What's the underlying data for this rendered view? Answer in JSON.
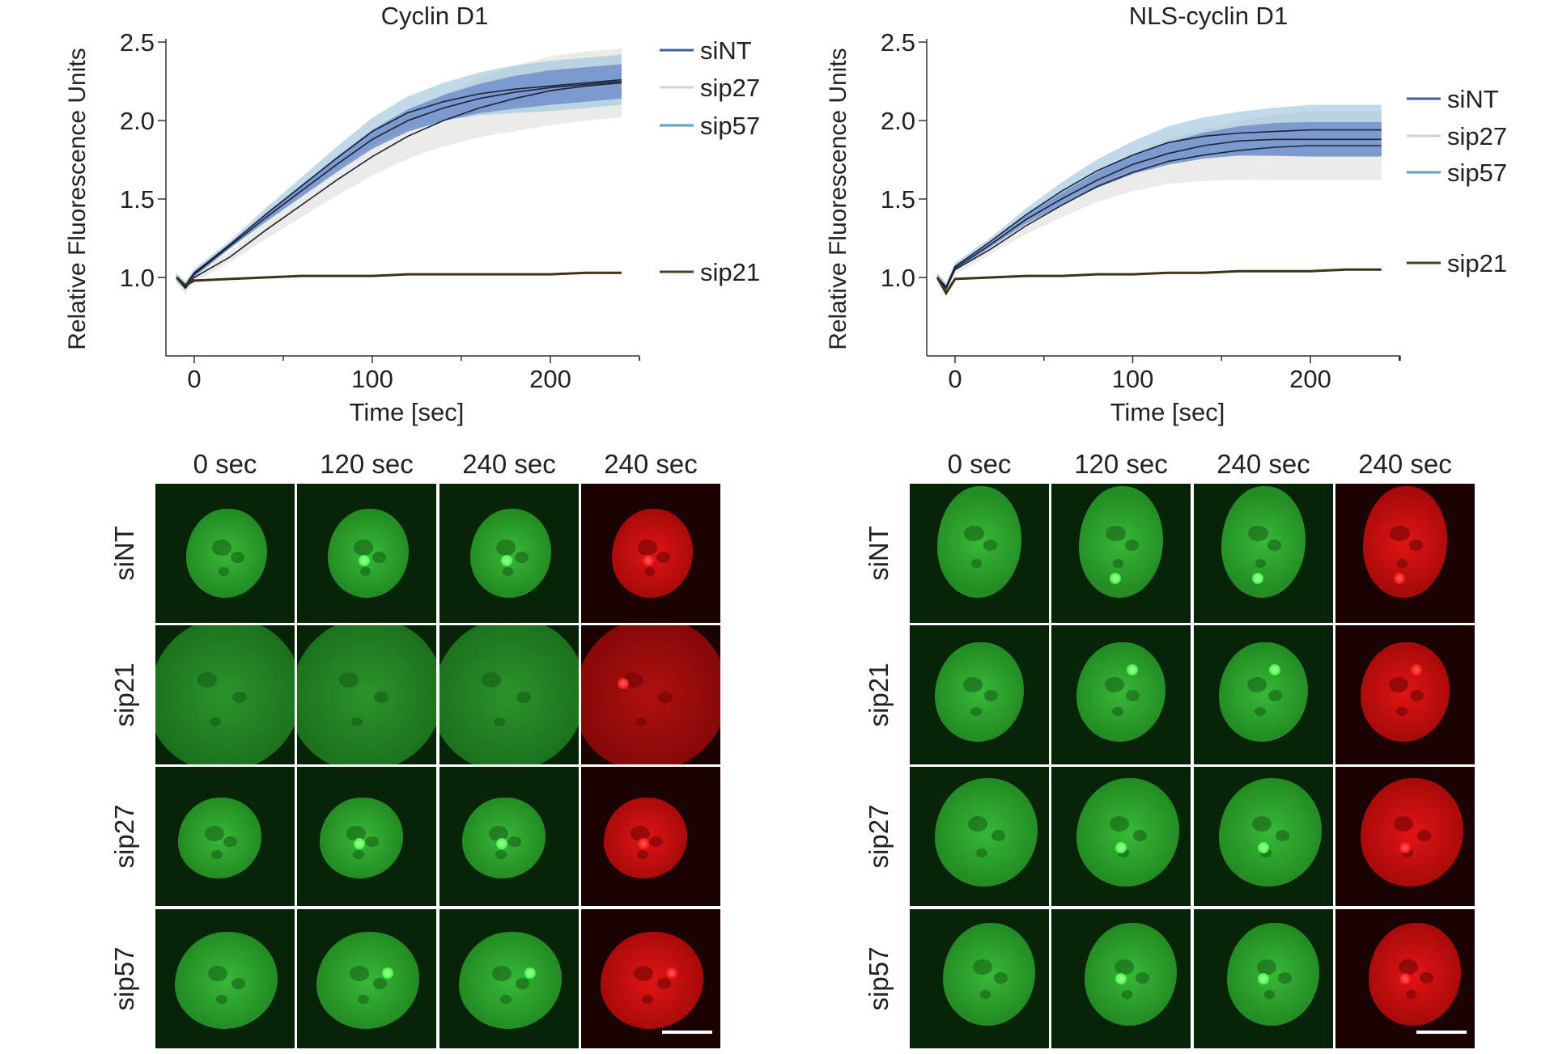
{
  "charts": [
    {
      "title": "Cyclin D1",
      "xlabel": "Time [sec]",
      "ylabel": "Relative Fluorescence Units",
      "xticks": [
        "0",
        "100",
        "200"
      ],
      "yticks": [
        "1.0",
        "1.5",
        "2.0",
        "2.5"
      ]
    },
    {
      "title": "NLS-cyclin D1",
      "xlabel": "Time [sec]",
      "ylabel": "Relative Fluorescence Units",
      "xticks": [
        "0",
        "100",
        "200"
      ],
      "yticks": [
        "1.0",
        "1.5",
        "2.0",
        "2.5"
      ]
    }
  ],
  "chart_data": [
    {
      "type": "line",
      "title": "Cyclin D1",
      "xlabel": "Time [sec]",
      "ylabel": "Relative Fluorescence Units",
      "xlim": [
        -15,
        250
      ],
      "ylim": [
        0.5,
        2.5
      ],
      "grid": false,
      "legend_placement": "right",
      "x": [
        -10,
        -5,
        0,
        20,
        40,
        60,
        80,
        100,
        120,
        140,
        160,
        180,
        200,
        220,
        240
      ],
      "series": [
        {
          "name": "siNT",
          "color": "#3b5ea8",
          "band": true,
          "values": [
            1.0,
            0.94,
            1.02,
            1.2,
            1.38,
            1.55,
            1.72,
            1.88,
            2.0,
            2.08,
            2.14,
            2.18,
            2.21,
            2.23,
            2.25
          ]
        },
        {
          "name": "sip27",
          "color": "#cfd4cf",
          "band": true,
          "values": [
            1.0,
            0.93,
            1.0,
            1.13,
            1.3,
            1.46,
            1.62,
            1.77,
            1.9,
            2.0,
            2.08,
            2.14,
            2.19,
            2.22,
            2.24
          ]
        },
        {
          "name": "sip57",
          "color": "#5ba2c4",
          "band": true,
          "values": [
            1.0,
            0.95,
            1.03,
            1.21,
            1.4,
            1.58,
            1.76,
            1.93,
            2.05,
            2.12,
            2.17,
            2.2,
            2.22,
            2.24,
            2.26
          ]
        },
        {
          "name": "sip21",
          "color": "#4a3f20",
          "band": false,
          "values": [
            1.0,
            0.95,
            0.98,
            0.99,
            1.0,
            1.01,
            1.01,
            1.01,
            1.02,
            1.02,
            1.02,
            1.02,
            1.02,
            1.03,
            1.03
          ]
        }
      ]
    },
    {
      "type": "line",
      "title": "NLS-cyclin D1",
      "xlabel": "Time [sec]",
      "ylabel": "Relative Fluorescence Units",
      "xlim": [
        -15,
        250
      ],
      "ylim": [
        0.5,
        2.5
      ],
      "grid": false,
      "legend_placement": "right",
      "x": [
        -10,
        -5,
        0,
        20,
        40,
        60,
        80,
        100,
        120,
        140,
        160,
        180,
        200,
        220,
        240
      ],
      "series": [
        {
          "name": "siNT",
          "color": "#3b5ea8",
          "band": true,
          "values": [
            1.0,
            0.93,
            1.06,
            1.21,
            1.37,
            1.5,
            1.62,
            1.72,
            1.79,
            1.84,
            1.87,
            1.88,
            1.88,
            1.88,
            1.88
          ]
        },
        {
          "name": "sip27",
          "color": "#cfd4cf",
          "band": true,
          "values": [
            1.0,
            0.93,
            1.05,
            1.18,
            1.33,
            1.46,
            1.58,
            1.67,
            1.74,
            1.78,
            1.81,
            1.83,
            1.84,
            1.84,
            1.84
          ]
        },
        {
          "name": "sip57",
          "color": "#5ba2c4",
          "band": true,
          "values": [
            1.0,
            0.94,
            1.07,
            1.23,
            1.4,
            1.55,
            1.68,
            1.78,
            1.86,
            1.9,
            1.92,
            1.93,
            1.94,
            1.94,
            1.94
          ]
        },
        {
          "name": "sip21",
          "color": "#4a3f20",
          "band": false,
          "values": [
            1.0,
            0.9,
            0.99,
            1.0,
            1.01,
            1.01,
            1.02,
            1.02,
            1.03,
            1.03,
            1.04,
            1.04,
            1.04,
            1.05,
            1.05
          ]
        }
      ]
    }
  ],
  "micrographs": [
    {
      "columns": [
        "0 sec",
        "120 sec",
        "240 sec",
        "240 sec"
      ],
      "rows": [
        "siNT",
        "sip21",
        "sip27",
        "sip57"
      ]
    },
    {
      "columns": [
        "0 sec",
        "120 sec",
        "240 sec",
        "240 sec"
      ],
      "rows": [
        "siNT",
        "sip21",
        "sip27",
        "sip57"
      ]
    }
  ]
}
